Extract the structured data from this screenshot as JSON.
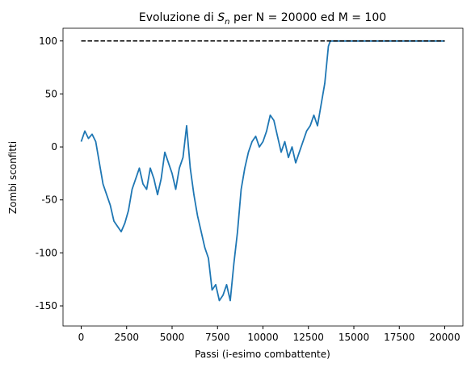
{
  "chart_data": {
    "type": "line",
    "title": {
      "before": "Evoluzione di ",
      "symbol": "S",
      "subscript": "n",
      "after": " per N = 20000 ed M = 100"
    },
    "xlabel": "Passi (i-esimo combattente)",
    "ylabel": "Zombi sconfitti",
    "x": [
      0,
      200,
      400,
      600,
      800,
      1000,
      1200,
      1400,
      1600,
      1800,
      2000,
      2200,
      2400,
      2600,
      2800,
      3000,
      3200,
      3400,
      3600,
      3800,
      4000,
      4200,
      4400,
      4600,
      4800,
      5000,
      5200,
      5400,
      5600,
      5800,
      6000,
      6200,
      6400,
      6600,
      6800,
      7000,
      7200,
      7400,
      7600,
      7800,
      8000,
      8200,
      8400,
      8600,
      8800,
      9000,
      9200,
      9400,
      9600,
      9800,
      10000,
      10200,
      10400,
      10600,
      10800,
      11000,
      11200,
      11400,
      11600,
      11800,
      12000,
      12200,
      12400,
      12600,
      12800,
      13000,
      13200,
      13400,
      13600,
      13700,
      20000
    ],
    "series": [
      {
        "color": "#1f77b4",
        "values": [
          5,
          15,
          8,
          12,
          5,
          -15,
          -35,
          -45,
          -55,
          -70,
          -75,
          -80,
          -72,
          -60,
          -40,
          -30,
          -20,
          -35,
          -40,
          -20,
          -30,
          -45,
          -30,
          -5,
          -15,
          -25,
          -40,
          -20,
          -10,
          20,
          -20,
          -45,
          -65,
          -80,
          -95,
          -105,
          -135,
          -130,
          -145,
          -140,
          -130,
          -145,
          -110,
          -80,
          -40,
          -20,
          -5,
          5,
          10,
          0,
          5,
          15,
          30,
          25,
          10,
          -5,
          5,
          -10,
          0,
          -15,
          -5,
          5,
          15,
          20,
          30,
          20,
          40,
          60,
          95,
          100,
          100
        ]
      }
    ],
    "hline": 100,
    "xlim": [
      -1000,
      21000
    ],
    "ylim": [
      -169,
      112
    ],
    "xticks": [
      0,
      2500,
      5000,
      7500,
      10000,
      12500,
      15000,
      17500,
      20000
    ],
    "yticks": [
      -150,
      -100,
      -50,
      0,
      50,
      100
    ]
  }
}
